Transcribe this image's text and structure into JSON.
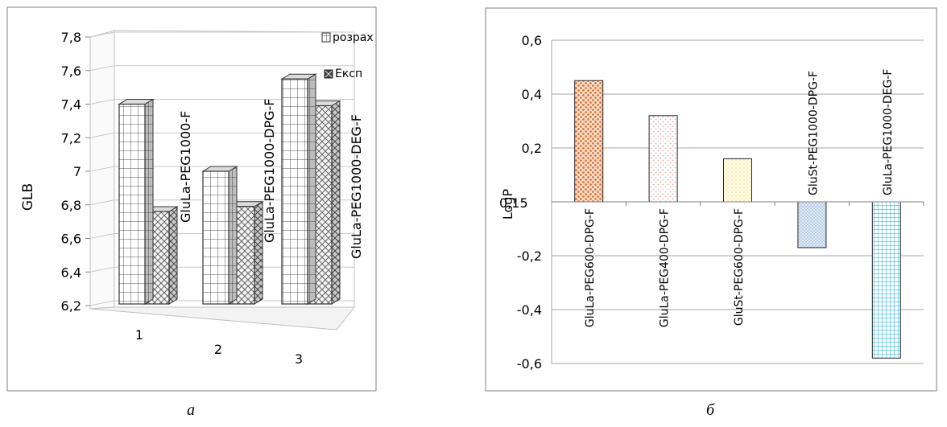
{
  "chart_data": [
    {
      "type": "bar",
      "panel_label": "a",
      "ylabel": "GLB",
      "ylim": [
        6.2,
        7.8
      ],
      "y_ticks": [
        "7,8",
        "7,6",
        "7,4",
        "7,2",
        "7",
        "6,8",
        "6,6",
        "6,4",
        "6,2"
      ],
      "categories": [
        "1",
        "2",
        "3"
      ],
      "series": [
        {
          "name": "розрах",
          "values": [
            7.4,
            7.0,
            7.55
          ],
          "color": "#ffffff",
          "pattern": "grid"
        },
        {
          "name": "Експ",
          "values": [
            6.77,
            6.8,
            7.4
          ],
          "color": "#ffffff",
          "pattern": "crosshatch"
        }
      ],
      "annotations": [
        "GluLa-PEG1000-F",
        "GluLa-PEG1000-DPG-F",
        "GluLa-PEG1000-DEG-F"
      ],
      "legend_position": "top-right",
      "grid": true
    },
    {
      "type": "bar",
      "panel_label": "б",
      "ylabel": "LogP",
      "axis_origin_label": "0,15",
      "ylim": [
        -0.6,
        0.6
      ],
      "y_ticks": [
        "0,6",
        "0,4",
        "0,2",
        "-0,2",
        "-0,4",
        "-0,6"
      ],
      "categories": [
        "GluLa-PEG600-DPG-F",
        "GluLa-PEG400-DPG-F",
        "GluSt-PEG600-DPG-F",
        "GluSt-PEG1000-DPG-F",
        "GluLa-PEG1000-DEG-F"
      ],
      "values": [
        0.45,
        0.32,
        0.16,
        -0.17,
        -0.58
      ],
      "colors": [
        "#e36f2a",
        "#e9a8a6",
        "#f1dd7a",
        "#92b4dc",
        "#3cb8e4"
      ],
      "grid": true
    }
  ]
}
